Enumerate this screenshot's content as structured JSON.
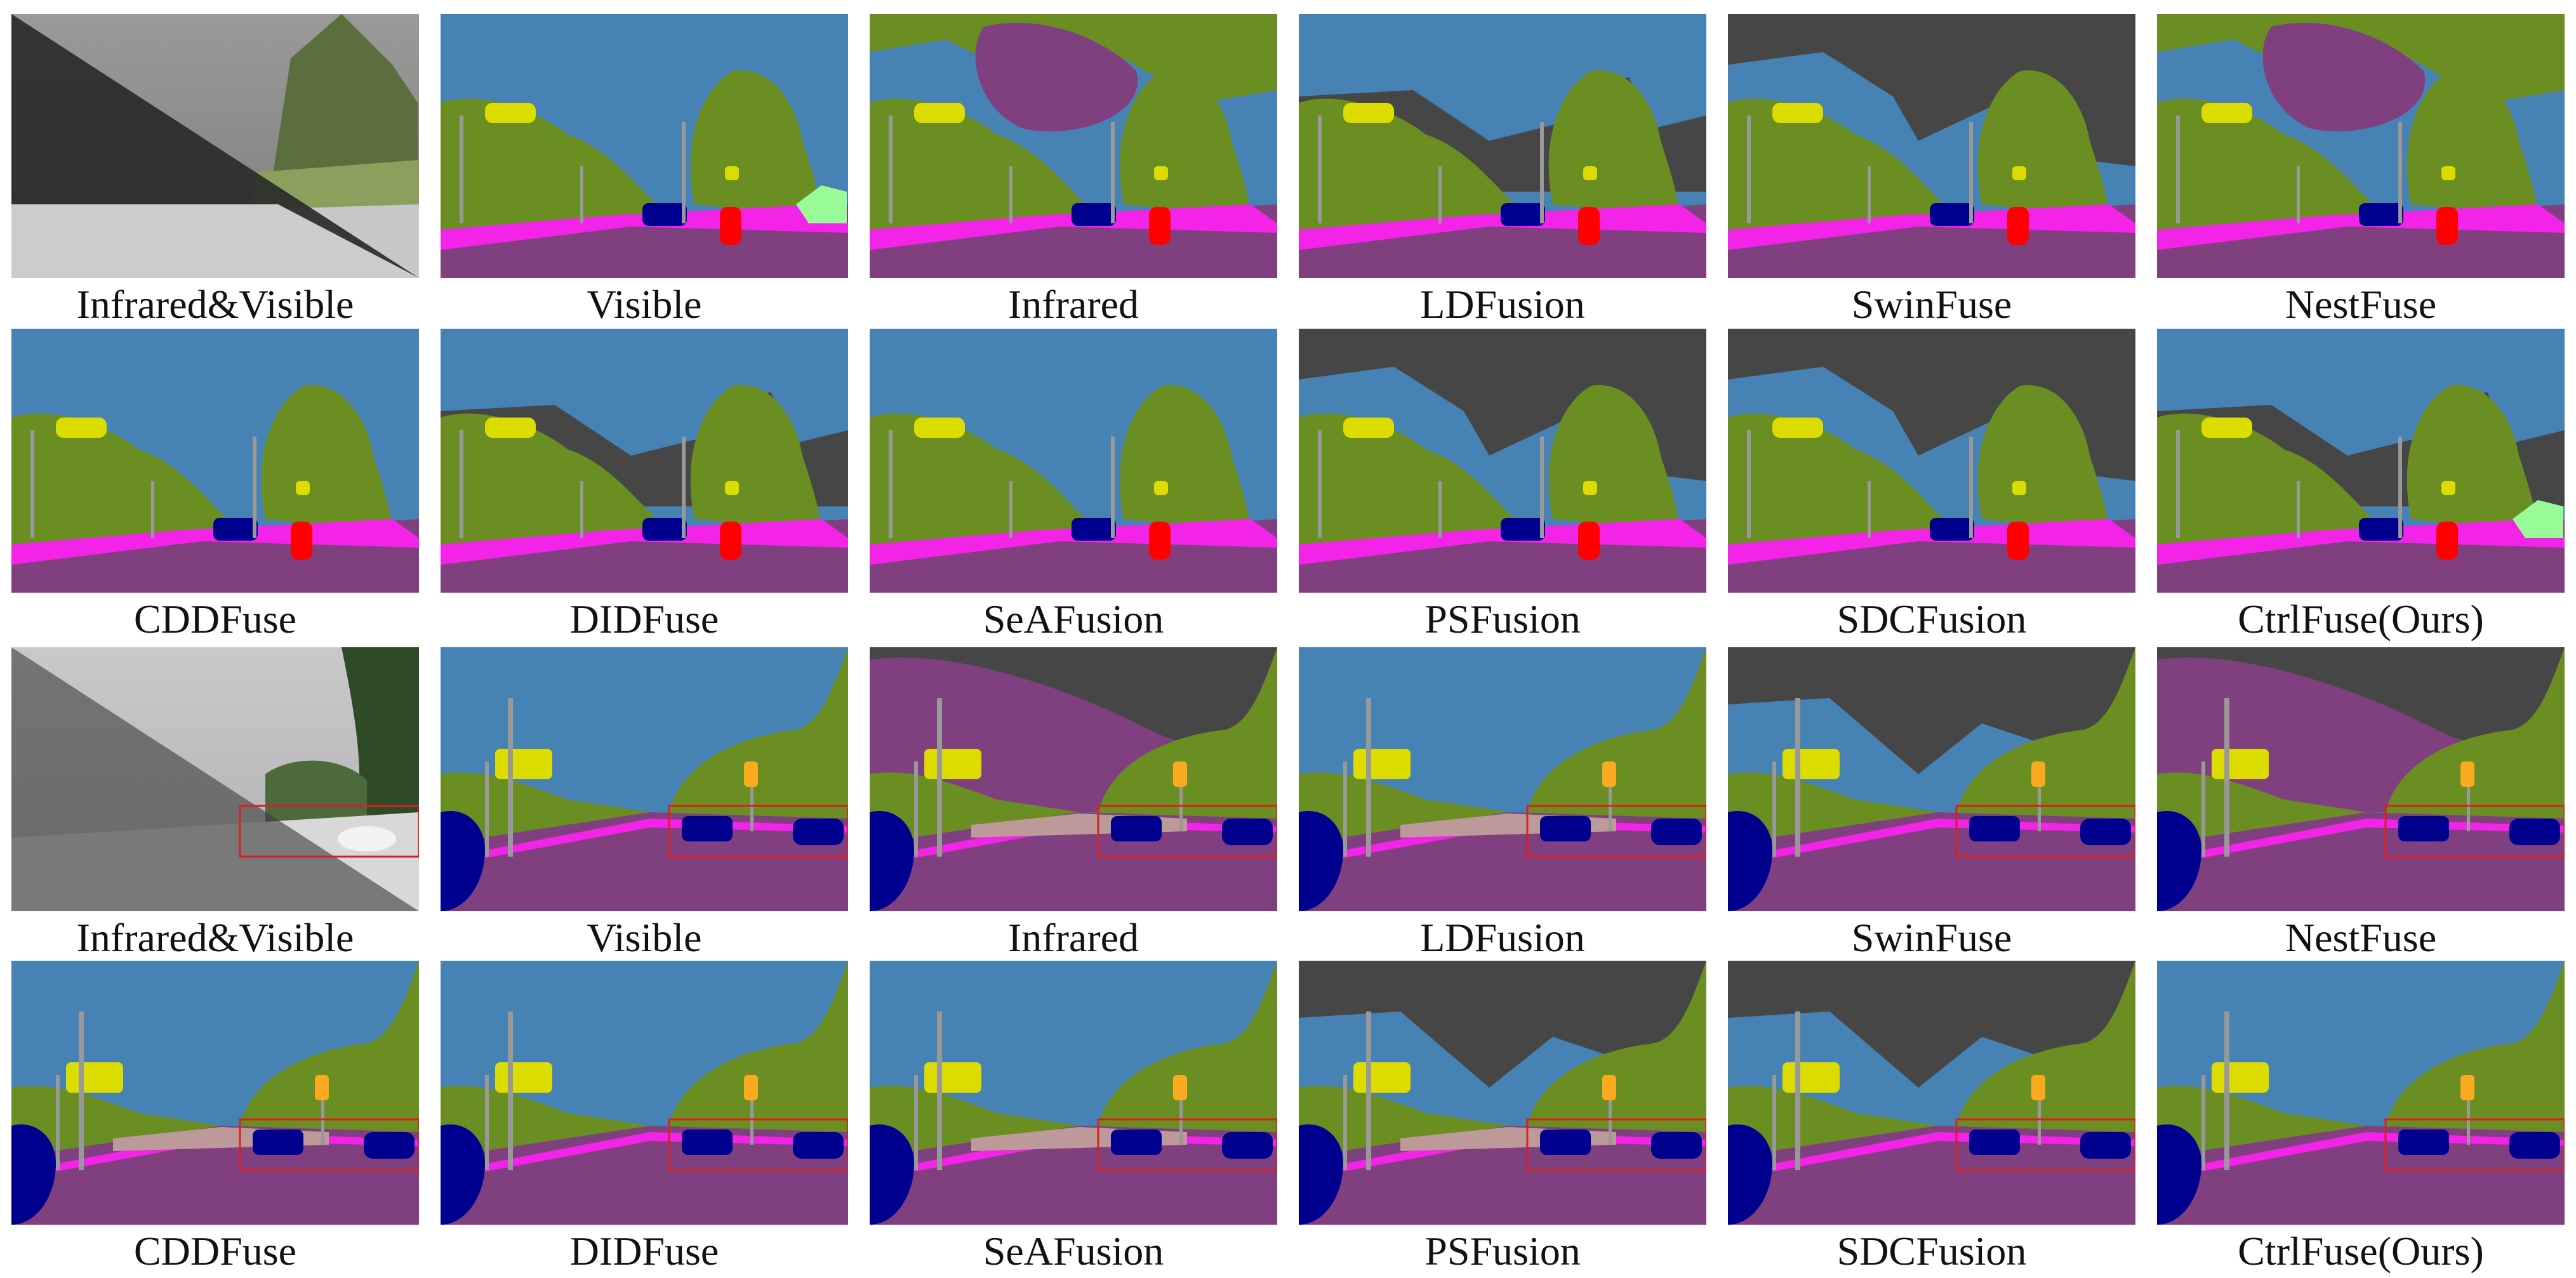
{
  "palette": {
    "sky": "#4682b4",
    "vegetation": "#6b8e23",
    "building": "#464646",
    "road": "#804080",
    "sidewalk": "#f423e8",
    "car": "#00008e",
    "person": "#dc1414",
    "rider": "#ff0000",
    "traffic_sign": "#dcdc00",
    "traffic_light": "#faaa1e",
    "pole": "#999999",
    "terrain": "#98fb98",
    "fence": "#be9999",
    "highlight_box": "#dc1e1e"
  },
  "rows": [
    {
      "scene": 1,
      "labels": [
        "Infrared&Visible",
        "Visible",
        "Infrared",
        "LDFusion",
        "SwinFuse",
        "NestFuse"
      ]
    },
    {
      "scene": 1,
      "labels": [
        "CDDFuse",
        "DIDFuse",
        "SeAFusion",
        "PSFusion",
        "SDCFusion",
        "CtrlFuse(Ours)"
      ]
    },
    {
      "scene": 2,
      "labels": [
        "Infrared&Visible",
        "Visible",
        "Infrared",
        "LDFusion",
        "SwinFuse",
        "NestFuse"
      ]
    },
    {
      "scene": 2,
      "labels": [
        "CDDFuse",
        "DIDFuse",
        "SeAFusion",
        "PSFusion",
        "SDCFusion",
        "CtrlFuse(Ours)"
      ]
    }
  ]
}
